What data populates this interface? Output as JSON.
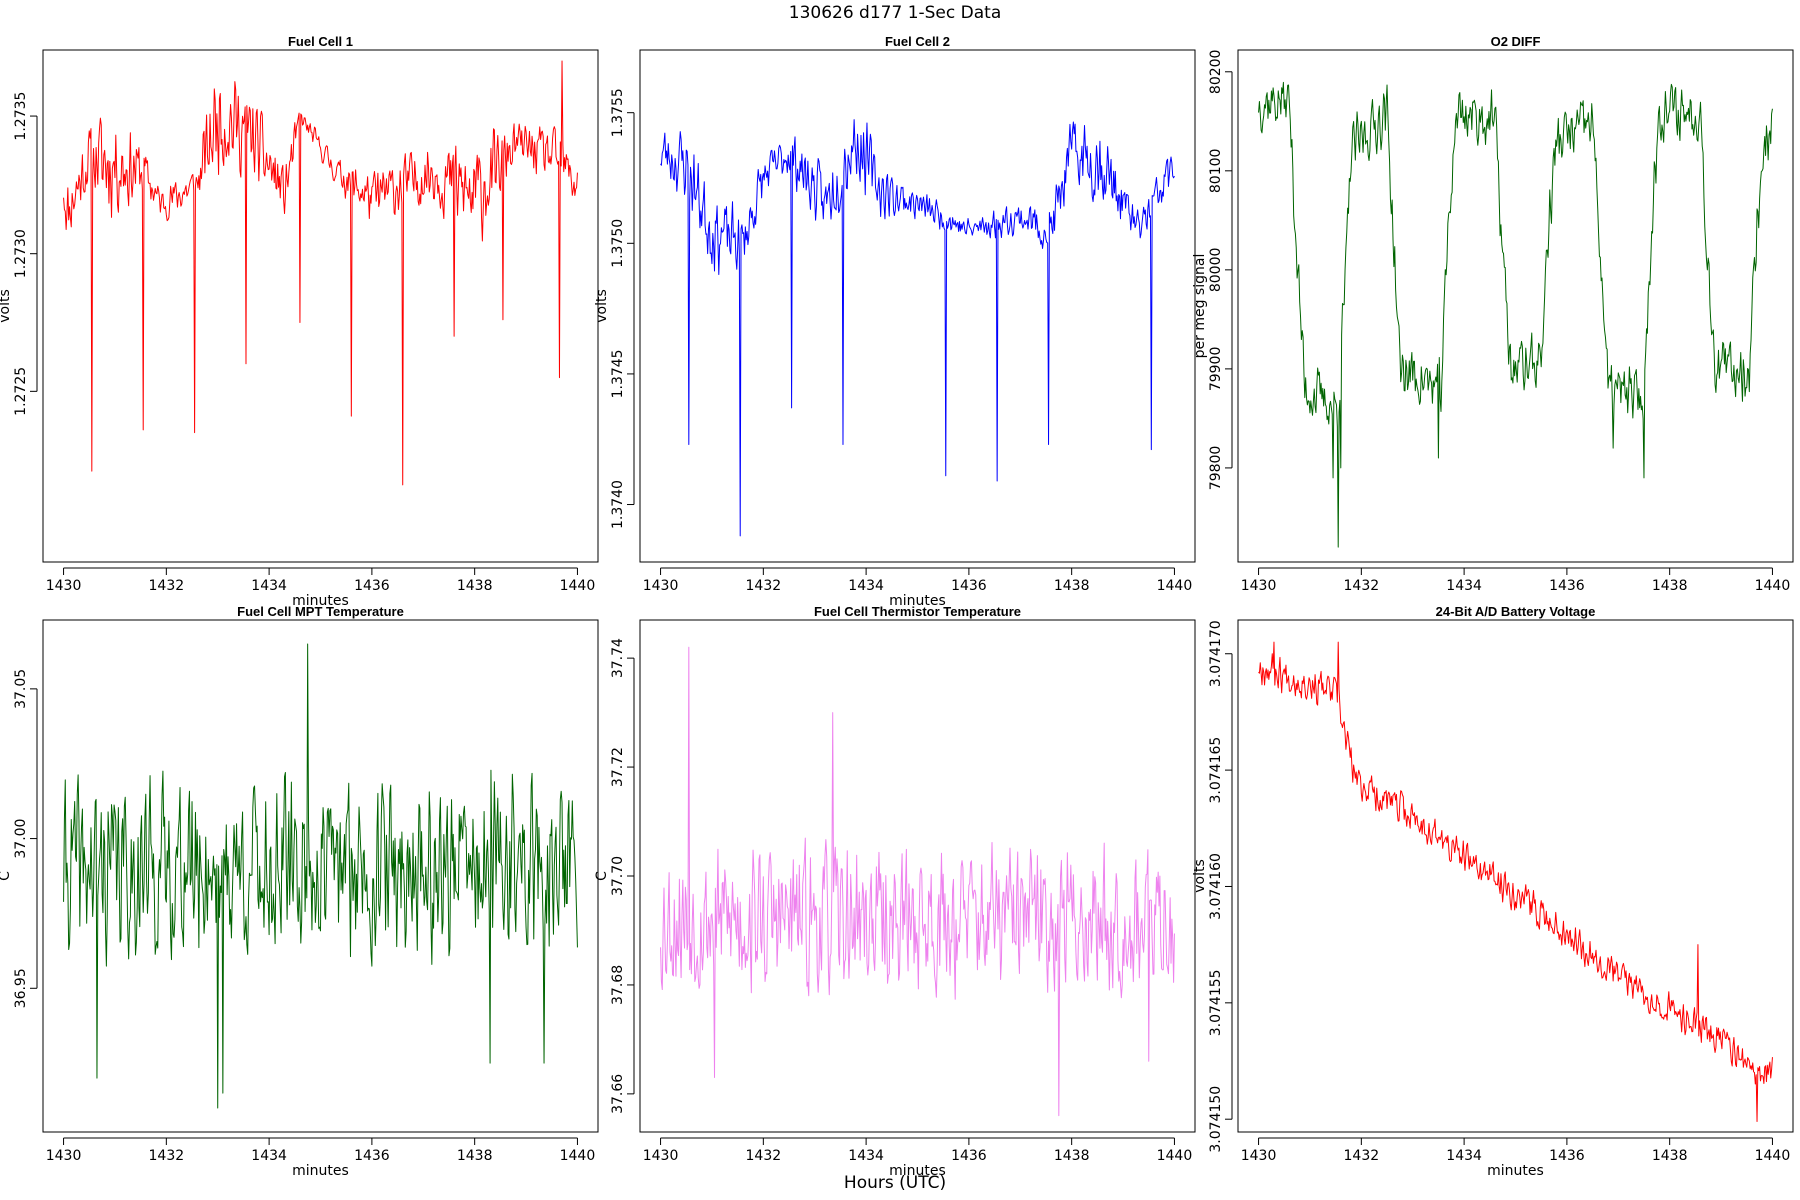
{
  "figure": {
    "suptitle": "130626   d177   1-Sec Data",
    "xlabel_outer": "Hours (UTC)"
  },
  "chart_data": [
    {
      "type": "line",
      "title": "Fuel Cell 1",
      "xlabel": "minutes",
      "ylabel": "volts",
      "color": "#ff0000",
      "xlim": [
        1429.6,
        1440.4
      ],
      "ylim": [
        1.27188,
        1.27374
      ],
      "xticks": [
        1430,
        1432,
        1434,
        1436,
        1438,
        1440
      ],
      "xtick_labels": [
        "1430",
        "1432",
        "1434",
        "1436",
        "1438",
        "1440"
      ],
      "yticks": [
        1.2725,
        1.273,
        1.2735
      ],
      "ytick_labels": [
        "1.2725",
        "1.2730",
        "1.2735"
      ],
      "x": [
        1430,
        1440
      ],
      "points": 600,
      "y_mean": [
        [
          0,
          1.27325
        ],
        [
          0.07,
          1.27315
        ],
        [
          0.5,
          1.27335
        ],
        [
          1.55,
          1.2733
        ],
        [
          1.9,
          1.27318
        ],
        [
          2.6,
          1.27325
        ],
        [
          3.0,
          1.2735
        ],
        [
          3.6,
          1.27345
        ],
        [
          4.3,
          1.27322
        ],
        [
          4.6,
          1.2735
        ],
        [
          5.3,
          1.2733
        ],
        [
          6.0,
          1.2732
        ],
        [
          7.2,
          1.2733
        ],
        [
          8.0,
          1.2732
        ],
        [
          8.8,
          1.2734
        ],
        [
          9.6,
          1.27335
        ],
        [
          10,
          1.27325
        ]
      ],
      "y_amplitude": [
        [
          0,
          0.00012
        ],
        [
          0.6,
          0.00012
        ],
        [
          0.8,
          0.00022
        ],
        [
          1.6,
          0.0001
        ],
        [
          1.8,
          6e-05
        ],
        [
          2.6,
          8e-05
        ],
        [
          2.9,
          0.0002
        ],
        [
          3.6,
          0.00016
        ],
        [
          4.4,
          0.0001
        ],
        [
          4.6,
          3e-05
        ],
        [
          5.2,
          5e-05
        ],
        [
          6.0,
          0.0001
        ],
        [
          7.2,
          0.00012
        ],
        [
          8.0,
          0.0002
        ],
        [
          8.8,
          8e-05
        ],
        [
          9.6,
          0.0001
        ],
        [
          10,
          0.00012
        ]
      ],
      "spikes": [
        [
          0.55,
          1.27221
        ],
        [
          1.55,
          1.27236
        ],
        [
          2.55,
          1.27235
        ],
        [
          3.55,
          1.2726
        ],
        [
          4.6,
          1.27275
        ],
        [
          5.6,
          1.27241
        ],
        [
          6.6,
          1.27216
        ],
        [
          7.6,
          1.2727
        ],
        [
          8.55,
          1.27276
        ],
        [
          9.65,
          1.27255
        ],
        [
          9.7,
          1.2737
        ]
      ],
      "seed": 11
    },
    {
      "type": "line",
      "title": "Fuel Cell 2",
      "xlabel": "minutes",
      "ylabel": "volts",
      "color": "#0000ff",
      "xlim": [
        1429.6,
        1440.4
      ],
      "ylim": [
        1.37378,
        1.37574
      ],
      "xticks": [
        1430,
        1432,
        1434,
        1436,
        1438,
        1440
      ],
      "xtick_labels": [
        "1430",
        "1432",
        "1434",
        "1436",
        "1438",
        "1440"
      ],
      "yticks": [
        1.374,
        1.3745,
        1.375,
        1.3755
      ],
      "ytick_labels": [
        "1.3740",
        "1.3745",
        "1.3750",
        "1.3755"
      ],
      "x": [
        1430,
        1440
      ],
      "points": 600,
      "y_mean": [
        [
          0,
          1.37535
        ],
        [
          0.5,
          1.3753
        ],
        [
          1.0,
          1.37505
        ],
        [
          1.6,
          1.375
        ],
        [
          2.0,
          1.37525
        ],
        [
          2.5,
          1.37535
        ],
        [
          3.2,
          1.37515
        ],
        [
          3.8,
          1.3754
        ],
        [
          4.3,
          1.3752
        ],
        [
          5.0,
          1.37515
        ],
        [
          6.0,
          1.37505
        ],
        [
          7.0,
          1.3751
        ],
        [
          7.6,
          1.37505
        ],
        [
          8.0,
          1.37535
        ],
        [
          8.6,
          1.3753
        ],
        [
          9.3,
          1.37505
        ],
        [
          10,
          1.3753
        ]
      ],
      "y_amplitude": [
        [
          0,
          0.00012
        ],
        [
          0.9,
          0.00016
        ],
        [
          1.7,
          0.00012
        ],
        [
          2.2,
          8e-05
        ],
        [
          3.0,
          0.00012
        ],
        [
          3.8,
          0.00016
        ],
        [
          4.4,
          0.0001
        ],
        [
          5.0,
          6e-05
        ],
        [
          6.0,
          5e-05
        ],
        [
          7.0,
          6e-05
        ],
        [
          7.8,
          0.00012
        ],
        [
          8.6,
          0.00016
        ],
        [
          9.2,
          8e-05
        ],
        [
          10,
          0.0001
        ]
      ],
      "spikes": [
        [
          0.55,
          1.37423
        ],
        [
          1.55,
          1.37388
        ],
        [
          2.55,
          1.37437
        ],
        [
          3.55,
          1.37423
        ],
        [
          5.55,
          1.37411
        ],
        [
          6.55,
          1.37409
        ],
        [
          7.55,
          1.37423
        ],
        [
          9.55,
          1.37421
        ]
      ],
      "seed": 23
    },
    {
      "type": "line",
      "title": "O2 DIFF",
      "xlabel": "",
      "ylabel": "per meg signal",
      "color": "#006400",
      "xlim": [
        1429.6,
        1440.4
      ],
      "ylim": [
        79705,
        80222
      ],
      "xticks": [
        1430,
        1432,
        1434,
        1436,
        1438,
        1440
      ],
      "xtick_labels": [
        "1430",
        "1432",
        "1434",
        "1436",
        "1438",
        "1440"
      ],
      "yticks": [
        79800,
        79900,
        80000,
        80100,
        80200
      ],
      "ytick_labels": [
        "79800",
        "79900",
        "80000",
        "80100",
        "80200"
      ],
      "x": [
        1430,
        1440
      ],
      "points": 600,
      "y_mean": [
        [
          0,
          80170
        ],
        [
          0.6,
          80170
        ],
        [
          0.75,
          80010
        ],
        [
          0.9,
          79880
        ],
        [
          1.55,
          79860
        ],
        [
          1.7,
          80000
        ],
        [
          1.8,
          80120
        ],
        [
          2.5,
          80160
        ],
        [
          2.6,
          80060
        ],
        [
          2.75,
          79900
        ],
        [
          3.55,
          79880
        ],
        [
          3.7,
          80050
        ],
        [
          3.85,
          80160
        ],
        [
          4.6,
          80150
        ],
        [
          4.75,
          80020
        ],
        [
          4.9,
          79900
        ],
        [
          5.5,
          79910
        ],
        [
          5.65,
          80050
        ],
        [
          5.8,
          80130
        ],
        [
          6.5,
          80150
        ],
        [
          6.65,
          80020
        ],
        [
          6.8,
          79880
        ],
        [
          7.5,
          79870
        ],
        [
          7.65,
          80050
        ],
        [
          7.8,
          80160
        ],
        [
          8.6,
          80160
        ],
        [
          8.75,
          80000
        ],
        [
          8.9,
          79900
        ],
        [
          9.55,
          79900
        ],
        [
          9.7,
          80050
        ],
        [
          9.85,
          80130
        ],
        [
          10,
          80150
        ]
      ],
      "y_amplitude": [
        [
          0,
          30
        ],
        [
          10,
          30
        ]
      ],
      "spikes": [
        [
          1.55,
          79720
        ],
        [
          1.45,
          79790
        ],
        [
          1.6,
          79800
        ],
        [
          7.5,
          79790
        ],
        [
          3.5,
          79810
        ],
        [
          6.9,
          79820
        ]
      ],
      "seed": 37
    },
    {
      "type": "line",
      "title": "Fuel Cell MPT Temperature",
      "xlabel": "minutes",
      "ylabel": "C",
      "color": "#006400",
      "xlim": [
        1429.6,
        1440.4
      ],
      "ylim": [
        36.902,
        37.073
      ],
      "xticks": [
        1430,
        1432,
        1434,
        1436,
        1438,
        1440
      ],
      "xtick_labels": [
        "1430",
        "1432",
        "1434",
        "1436",
        "1438",
        "1440"
      ],
      "yticks": [
        36.95,
        37.0,
        37.05
      ],
      "ytick_labels": [
        "36.95",
        "37.00",
        "37.05"
      ],
      "x": [
        1430,
        1440
      ],
      "points": 600,
      "y_mean": [
        [
          0,
          36.99
        ],
        [
          10,
          36.99
        ]
      ],
      "y_amplitude": [
        [
          0,
          0.03
        ],
        [
          10,
          0.03
        ]
      ],
      "spikes": [
        [
          3.0,
          36.91
        ],
        [
          3.1,
          36.915
        ],
        [
          0.65,
          36.92
        ],
        [
          4.75,
          37.065
        ],
        [
          9.35,
          36.925
        ],
        [
          8.3,
          36.925
        ]
      ],
      "seed": 41
    },
    {
      "type": "line",
      "title": "Fuel Cell Thermistor Temperature",
      "xlabel": "minutes",
      "ylabel": "C",
      "color": "#ee82ee",
      "xlim": [
        1429.6,
        1440.4
      ],
      "ylim": [
        37.653,
        37.747
      ],
      "xticks": [
        1430,
        1432,
        1434,
        1436,
        1438,
        1440
      ],
      "xtick_labels": [
        "1430",
        "1432",
        "1434",
        "1436",
        "1438",
        "1440"
      ],
      "yticks": [
        37.66,
        37.68,
        37.7,
        37.72,
        37.74
      ],
      "ytick_labels": [
        "37.66",
        "37.68",
        "37.70",
        "37.72",
        "37.74"
      ],
      "x": [
        1430,
        1440
      ],
      "points": 600,
      "y_mean": [
        [
          0,
          37.692
        ],
        [
          10,
          37.692
        ]
      ],
      "y_amplitude": [
        [
          0,
          0.014
        ],
        [
          10,
          0.014
        ]
      ],
      "spikes": [
        [
          0.55,
          37.742
        ],
        [
          7.75,
          37.656
        ],
        [
          3.35,
          37.73
        ],
        [
          1.05,
          37.663
        ],
        [
          9.5,
          37.666
        ]
      ],
      "seed": 53
    },
    {
      "type": "line",
      "title": "24-Bit A/D Battery Voltage",
      "xlabel": "minutes",
      "ylabel": "volts",
      "color": "#ff0000",
      "xlim": [
        1429.6,
        1440.4
      ],
      "ylim": [
        3.07414945,
        3.07417145
      ],
      "xticks": [
        1430,
        1432,
        1434,
        1436,
        1438,
        1440
      ],
      "xtick_labels": [
        "1430",
        "1432",
        "1434",
        "1436",
        "1438",
        "1440"
      ],
      "yticks": [
        3.07415,
        3.074155,
        3.07416,
        3.074165,
        3.07417
      ],
      "ytick_labels": [
        "3.074150",
        "3.074155",
        "3.074160",
        "3.074165",
        "3.074170"
      ],
      "x": [
        1430,
        1440
      ],
      "points": 600,
      "y_mean": [
        [
          0,
          3.0741695
        ],
        [
          1.5,
          3.0741683
        ],
        [
          1.9,
          3.0741645
        ],
        [
          3.0,
          3.074163
        ],
        [
          4.0,
          3.0741612
        ],
        [
          5.0,
          3.0741597
        ],
        [
          6.0,
          3.074158
        ],
        [
          7.0,
          3.0741562
        ],
        [
          8.0,
          3.0741547
        ],
        [
          9.0,
          3.0741535
        ],
        [
          9.7,
          3.0741518
        ],
        [
          10,
          3.0741522
        ]
      ],
      "y_amplitude": [
        [
          0,
          8e-07
        ],
        [
          10,
          7e-07
        ]
      ],
      "spikes": [
        [
          8.55,
          3.0741575
        ],
        [
          9.7,
          3.0741499
        ],
        [
          0.3,
          3.0741705
        ],
        [
          1.55,
          3.0741705
        ]
      ],
      "seed": 67
    }
  ]
}
